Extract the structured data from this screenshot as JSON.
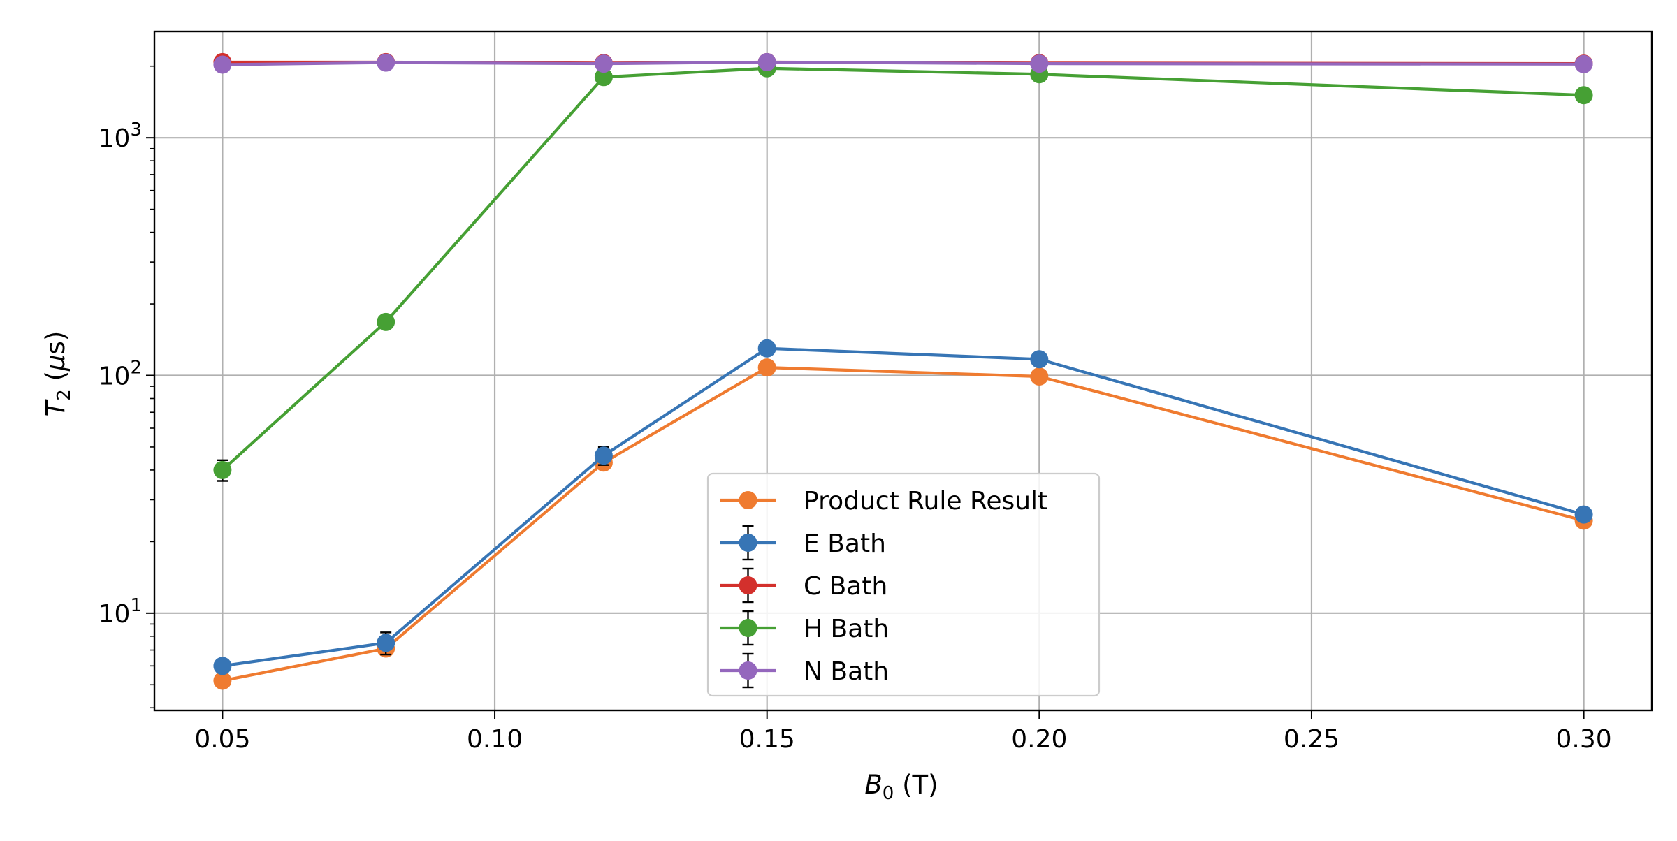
{
  "chart_data": {
    "type": "line",
    "xlabel": "B₀ (T)",
    "xlabel_main": "B",
    "xlabel_sub": "0",
    "xlabel_unit": " (T)",
    "ylabel": "T₂ (μs)",
    "ylabel_main": "T",
    "ylabel_sub": "2",
    "ylabel_unit_open": " (",
    "ylabel_unit_mu": "μ",
    "ylabel_unit_close": "s)",
    "xlim": [
      0.0375,
      0.3125
    ],
    "ylim": [
      3.9,
      2800
    ],
    "yscale": "log",
    "grid": true,
    "legend_position": "lower-center",
    "x_ticks": [
      {
        "value": 0.05,
        "label": "0.05"
      },
      {
        "value": 0.1,
        "label": "0.10"
      },
      {
        "value": 0.15,
        "label": "0.15"
      },
      {
        "value": 0.2,
        "label": "0.20"
      },
      {
        "value": 0.25,
        "label": "0.25"
      },
      {
        "value": 0.3,
        "label": "0.30"
      }
    ],
    "y_ticks": [
      {
        "value": 10,
        "base": "10",
        "exp": "1"
      },
      {
        "value": 100,
        "base": "10",
        "exp": "2"
      },
      {
        "value": 1000,
        "base": "10",
        "exp": "3"
      }
    ],
    "series": [
      {
        "name": "Product Rule Result",
        "color": "#ef7b30",
        "error_bars": false,
        "x": [
          0.05,
          0.08,
          0.12,
          0.15,
          0.2,
          0.3
        ],
        "y": [
          5.2,
          7.1,
          43,
          108,
          99,
          24.5
        ]
      },
      {
        "name": "E Bath",
        "color": "#3775b5",
        "error_bars": true,
        "x": [
          0.05,
          0.08,
          0.12,
          0.15,
          0.2,
          0.3
        ],
        "y": [
          6.0,
          7.5,
          46,
          130,
          117,
          26
        ],
        "err": [
          0.3,
          0.8,
          4,
          6,
          5,
          1.5
        ]
      },
      {
        "name": "C Bath",
        "color": "#d3302c",
        "error_bars": true,
        "x": [
          0.05,
          0.08,
          0.12,
          0.15,
          0.2,
          0.3
        ],
        "y": [
          2080,
          2080,
          2060,
          2080,
          2060,
          2050
        ],
        "err": [
          40,
          40,
          40,
          40,
          40,
          40
        ]
      },
      {
        "name": "H Bath",
        "color": "#46a034",
        "error_bars": true,
        "x": [
          0.05,
          0.08,
          0.12,
          0.15,
          0.2,
          0.3
        ],
        "y": [
          40,
          168,
          1800,
          1960,
          1850,
          1510
        ],
        "err": [
          4,
          6,
          40,
          40,
          40,
          40
        ]
      },
      {
        "name": "N Bath",
        "color": "#9467bd",
        "error_bars": true,
        "x": [
          0.05,
          0.08,
          0.12,
          0.15,
          0.2,
          0.3
        ],
        "y": [
          2030,
          2070,
          2050,
          2080,
          2050,
          2040
        ],
        "err": [
          40,
          40,
          40,
          40,
          40,
          40
        ]
      }
    ]
  }
}
